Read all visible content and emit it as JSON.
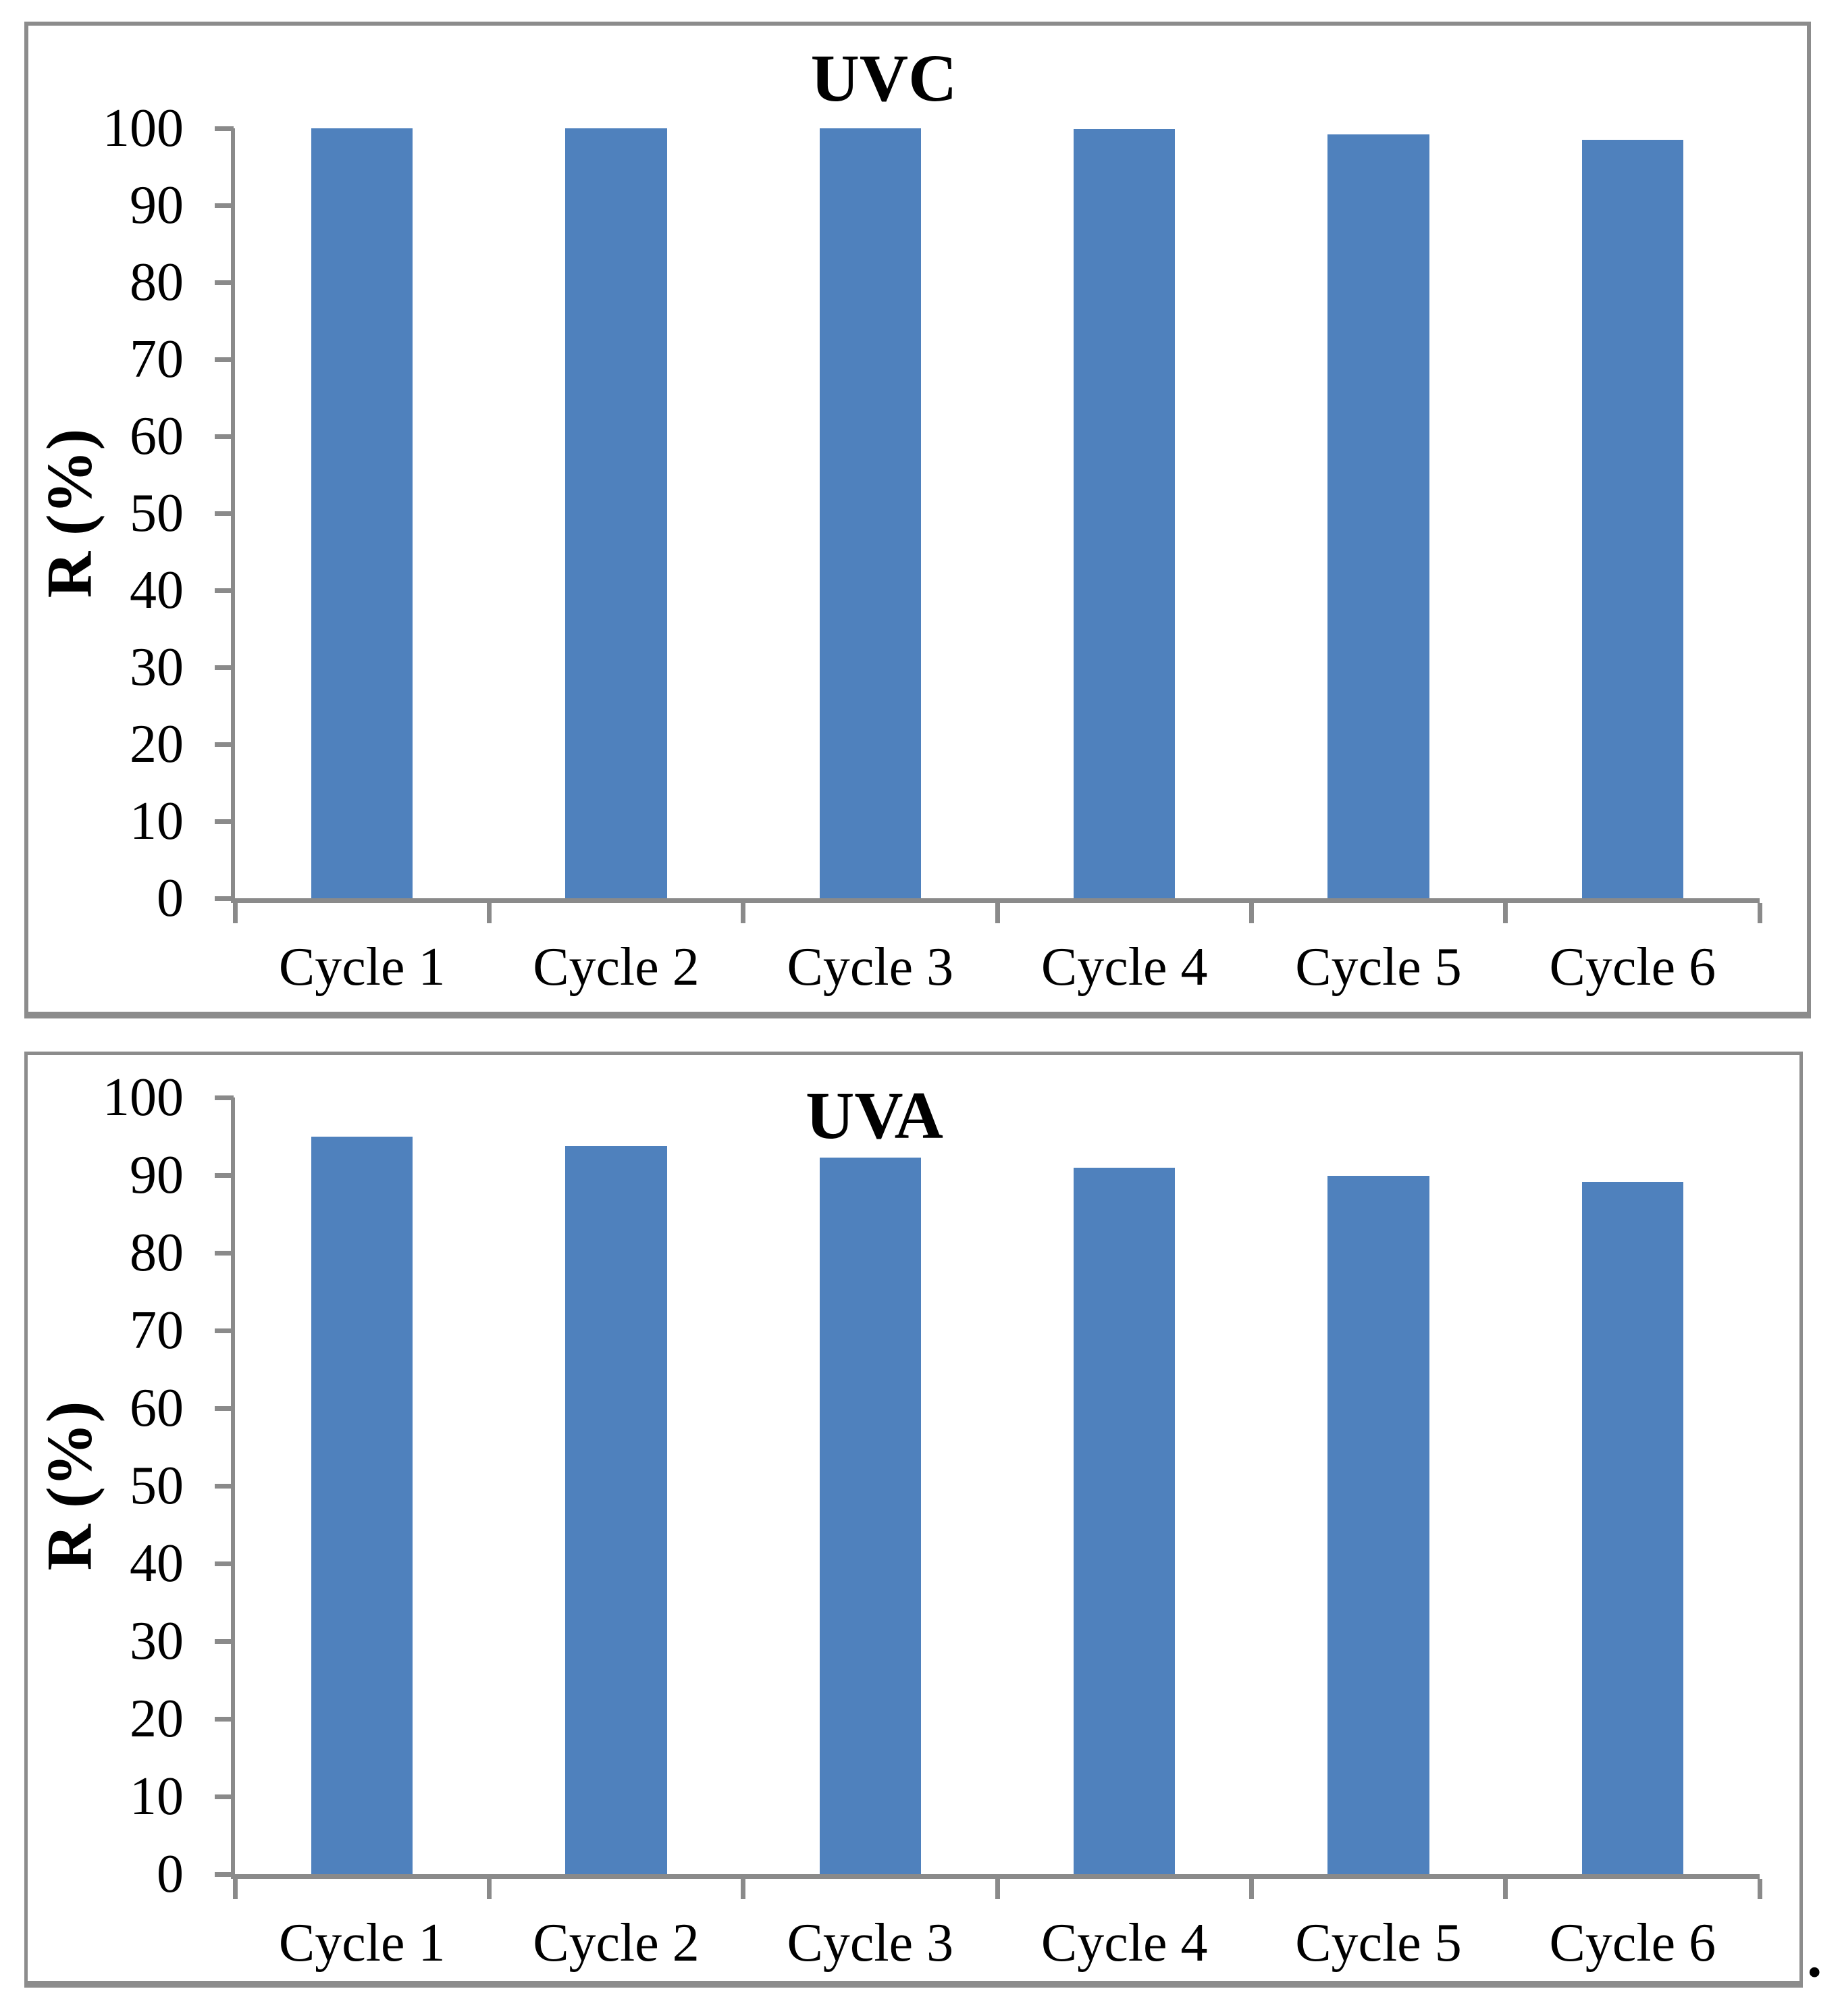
{
  "figure": {
    "caption_mark": "."
  },
  "chart_data": [
    {
      "type": "bar",
      "title": "UVC",
      "xlabel": "",
      "ylabel": "R (%)",
      "categories": [
        "Cycle 1",
        "Cycle 2",
        "Cycle 3",
        "Cycle 4",
        "Cycle 5",
        "Cycle 6"
      ],
      "values": [
        100,
        100,
        100,
        99.9,
        99.2,
        98.5
      ],
      "ylim": [
        0,
        100
      ],
      "yticks": [
        0,
        10,
        20,
        30,
        40,
        50,
        60,
        70,
        80,
        90,
        100
      ],
      "grid": false,
      "legend": "none",
      "bar_color": "#4f81bd",
      "axis_color": "#8a8a8a",
      "text_color": "#000000"
    },
    {
      "type": "bar",
      "title": "UVA",
      "xlabel": "",
      "ylabel": "R (%)",
      "categories": [
        "Cycle 1",
        "Cycle 2",
        "Cycle 3",
        "Cycle 4",
        "Cycle 5",
        "Cycle 6"
      ],
      "values": [
        95.0,
        93.7,
        92.3,
        91.0,
        89.9,
        89.1
      ],
      "ylim": [
        0,
        100
      ],
      "yticks": [
        0,
        10,
        20,
        30,
        40,
        50,
        60,
        70,
        80,
        90,
        100
      ],
      "grid": false,
      "legend": "none",
      "bar_color": "#4f81bd",
      "axis_color": "#8a8a8a",
      "text_color": "#000000"
    }
  ]
}
